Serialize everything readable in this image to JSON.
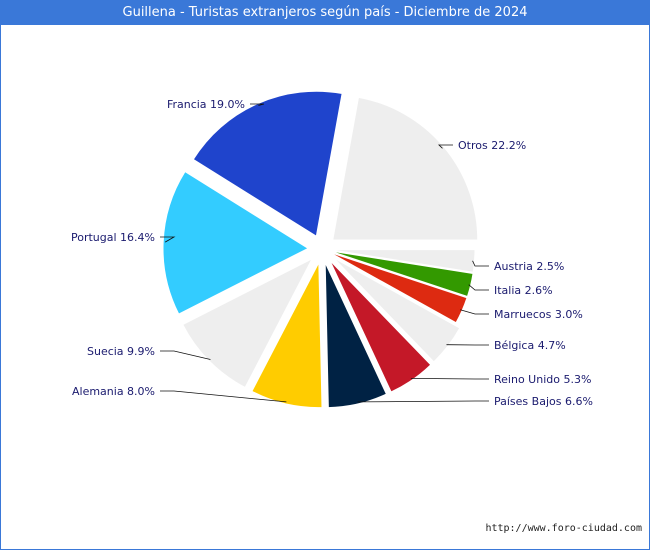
{
  "title": "Guillena - Turistas extranjeros según país - Diciembre de 2024",
  "source": "http://www.foro-ciudad.com",
  "chart_data": {
    "type": "pie",
    "title": "Guillena - Turistas extranjeros según país - Diciembre de 2024",
    "slices": [
      {
        "name": "Otros",
        "value": 22.2,
        "label": "Otros 22.2%",
        "color": "#eeeeee"
      },
      {
        "name": "Austria",
        "value": 2.5,
        "label": "Austria 2.5%",
        "color": "#eeeeee"
      },
      {
        "name": "Italia",
        "value": 2.6,
        "label": "Italia 2.6%",
        "color": "#339900"
      },
      {
        "name": "Marruecos",
        "value": 3.0,
        "label": "Marruecos 3.0%",
        "color": "#dd2a11"
      },
      {
        "name": "Bélgica",
        "value": 4.7,
        "label": "Bélgica 4.7%",
        "color": "#eeeeee"
      },
      {
        "name": "Reino Unido",
        "value": 5.3,
        "label": "Reino Unido 5.3%",
        "color": "#c41828"
      },
      {
        "name": "Países Bajos",
        "value": 6.6,
        "label": "Países Bajos 6.6%",
        "color": "#002244"
      },
      {
        "name": "Alemania",
        "value": 8.0,
        "label": "Alemania 8.0%",
        "color": "#ffcc00"
      },
      {
        "name": "Suecia",
        "value": 9.9,
        "label": "Suecia 9.9%",
        "color": "#eeeeee"
      },
      {
        "name": "Portugal",
        "value": 16.4,
        "label": "Portugal 16.4%",
        "color": "#33ccff"
      },
      {
        "name": "Francia",
        "value": 19.0,
        "label": "Francia 19.0%",
        "color": "#1f44cc"
      }
    ]
  }
}
